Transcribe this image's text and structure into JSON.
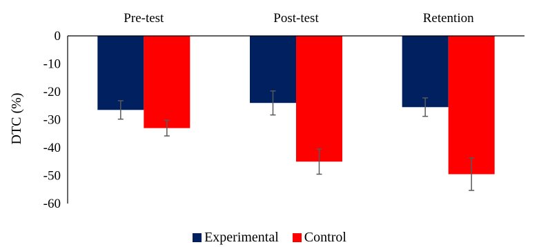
{
  "chart_data": {
    "type": "bar",
    "title": "",
    "xlabel": "",
    "ylabel": "DTC (%)",
    "categories": [
      "Pre-test",
      "Post-test",
      "Retention"
    ],
    "category_axis_position": "top",
    "ylim": [
      -60,
      0
    ],
    "yticks": [
      "0",
      "-10",
      "-20",
      "-30",
      "-40",
      "-50",
      "-60"
    ],
    "grid": false,
    "legend_position": "bottom-center",
    "error_bars": true,
    "series": [
      {
        "name": "Experimental",
        "color": "#002060",
        "values": [
          -26.5,
          -24,
          -25.5
        ],
        "errors": [
          3.3,
          4.3,
          3.3
        ]
      },
      {
        "name": "Control",
        "color": "#ff0000",
        "values": [
          -33,
          -45,
          -49.5
        ],
        "errors": [
          2.8,
          4.5,
          5.8
        ]
      }
    ]
  }
}
